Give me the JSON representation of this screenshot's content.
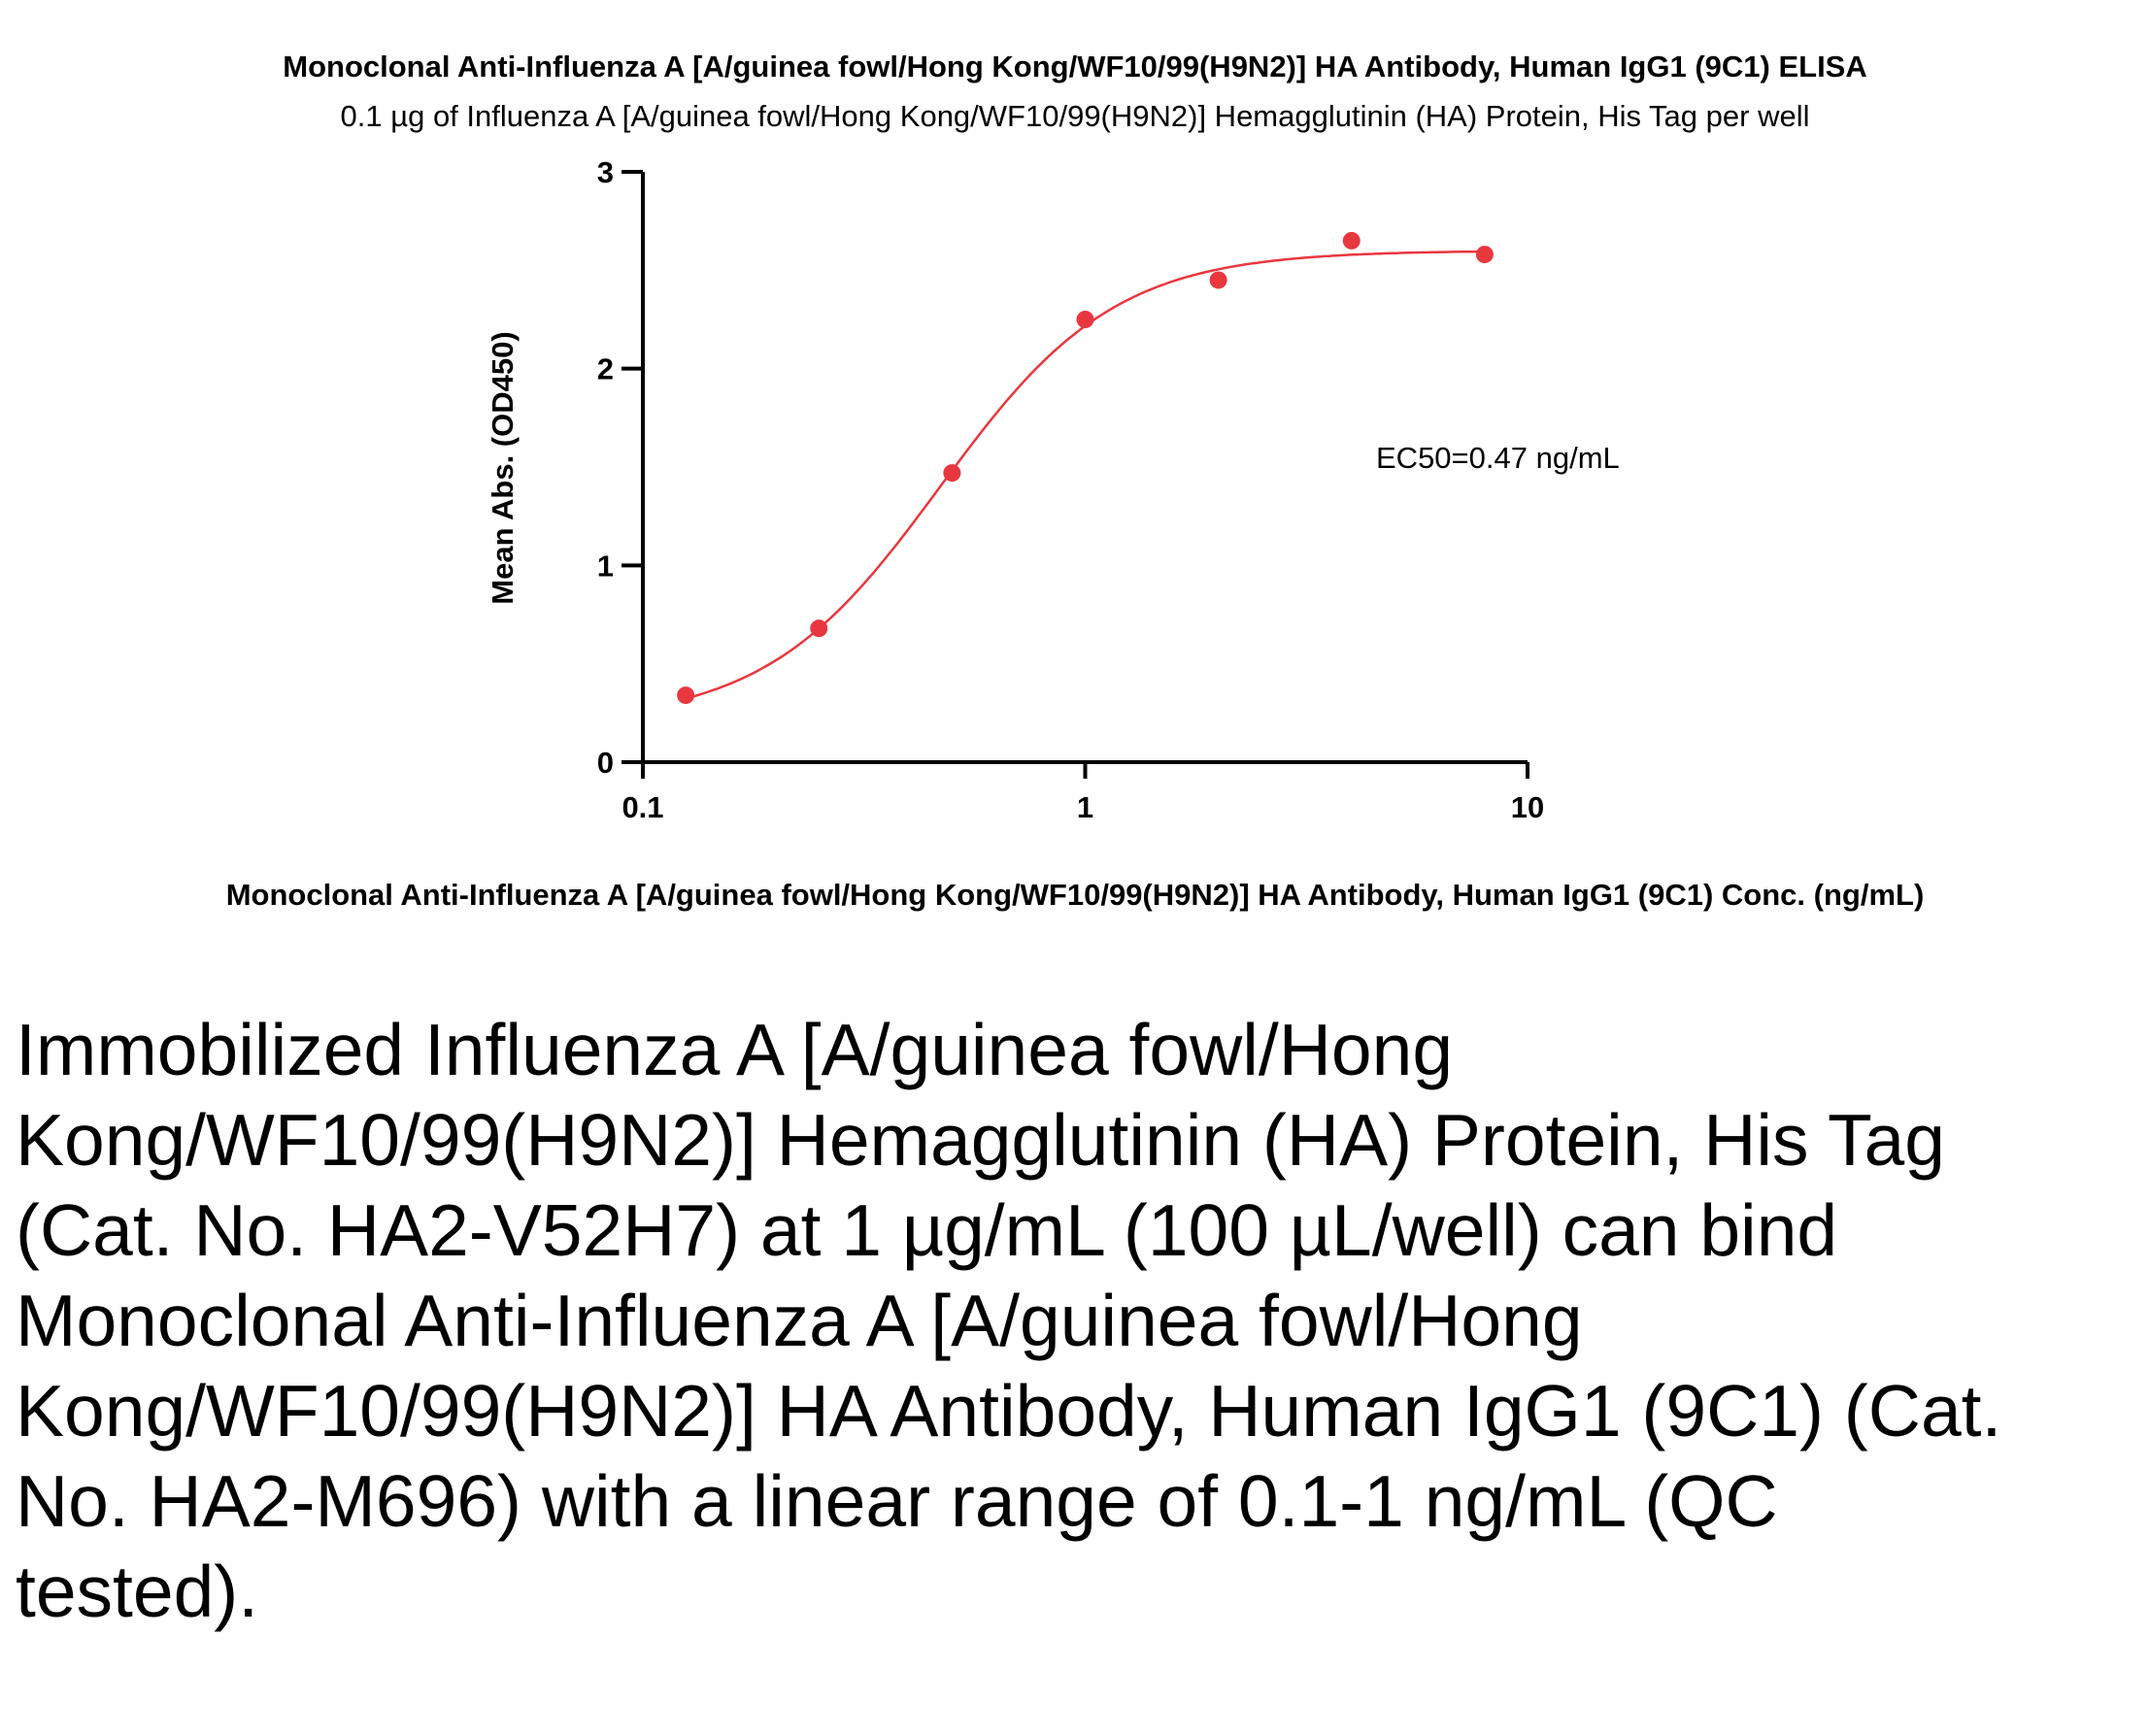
{
  "chart_data": {
    "type": "scatter",
    "title": "Monoclonal Anti-Influenza A [A/guinea fowl/Hong Kong/WF10/99(H9N2)] HA Antibody, Human IgG1 (9C1) ELISA",
    "subtitle": "0.1 µg of Influenza A [A/guinea fowl/Hong Kong/WF10/99(H9N2)] Hemagglutinin (HA) Protein, His Tag per well",
    "xlabel": "Monoclonal Anti-Influenza A [A/guinea fowl/Hong Kong/WF10/99(H9N2)] HA Antibody, Human IgG1 (9C1) Conc. (ng/mL)",
    "ylabel": "Mean Abs. (OD450)",
    "x_scale": "log",
    "xlim": [
      0.1,
      10
    ],
    "ylim": [
      0,
      3
    ],
    "x_ticks": [
      "0.1",
      "1",
      "10"
    ],
    "y_ticks": [
      "0",
      "1",
      "2",
      "3"
    ],
    "grid": false,
    "color": "#e8373e",
    "points": [
      {
        "x": 0.125,
        "y": 0.34
      },
      {
        "x": 0.25,
        "y": 0.68
      },
      {
        "x": 0.5,
        "y": 1.47
      },
      {
        "x": 1,
        "y": 2.25
      },
      {
        "x": 2,
        "y": 2.45
      },
      {
        "x": 4,
        "y": 2.65
      },
      {
        "x": 8,
        "y": 2.58
      }
    ],
    "fit_curve": {
      "type": "4PL",
      "bottom": 0.2,
      "top": 2.6,
      "ec50": 0.47,
      "hill": 2.2
    },
    "annotation": "EC50=0.47 ng/mL"
  },
  "caption": "Immobilized Influenza A [A/guinea fowl/Hong Kong/WF10/99(H9N2)] Hemagglutinin (HA) Protein, His Tag (Cat. No. HA2-V52H7) at 1 µg/mL (100 µL/well) can bind Monoclonal Anti-Influenza A [A/guinea fowl/Hong Kong/WF10/99(H9N2)] HA Antibody, Human IgG1 (9C1) (Cat. No. HA2-M696) with a linear range of 0.1-1 ng/mL (QC tested)."
}
